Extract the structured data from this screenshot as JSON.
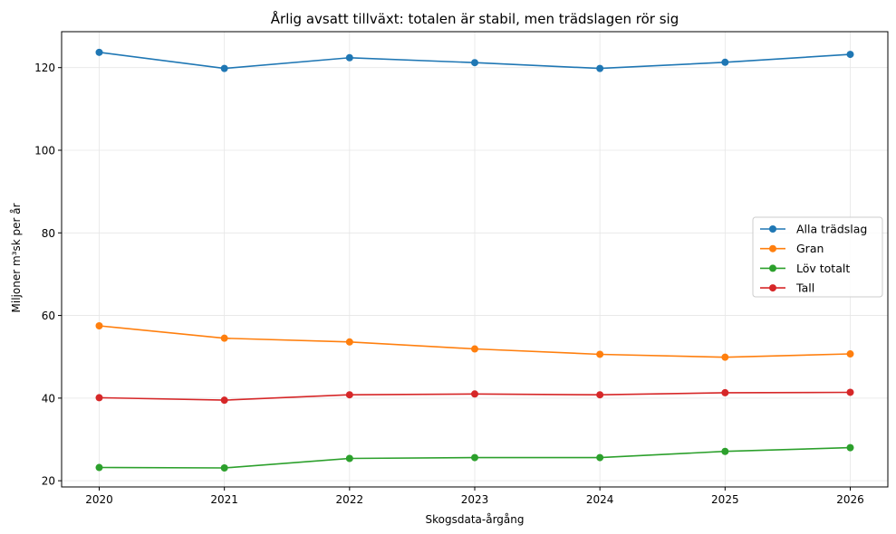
{
  "chart_data": {
    "type": "line",
    "title": "Årlig avsatt tillväxt: totalen är stabil, men trädslagen rör sig",
    "xlabel": "Skogsdata-årgång",
    "ylabel": "Miljoner m³sk per år",
    "x": [
      "2020",
      "2021",
      "2022",
      "2023",
      "2024",
      "2025",
      "2026"
    ],
    "y_ticks": [
      "20",
      "40",
      "60",
      "80",
      "100",
      "120"
    ],
    "ylim": [
      18.5,
      128.7
    ],
    "grid": true,
    "legend_position": "center-right",
    "series": [
      {
        "name": "Alla trädslag",
        "color": "#1f77b4",
        "values": [
          123.7,
          119.8,
          122.4,
          121.2,
          119.8,
          121.3,
          123.2
        ]
      },
      {
        "name": "Gran",
        "color": "#ff7f0e",
        "values": [
          57.5,
          54.5,
          53.6,
          51.9,
          50.6,
          49.9,
          50.7
        ]
      },
      {
        "name": "Löv totalt",
        "color": "#2ca02c",
        "values": [
          23.2,
          23.1,
          25.4,
          25.6,
          25.6,
          27.1,
          28.0
        ]
      },
      {
        "name": "Tall",
        "color": "#d62728",
        "values": [
          40.1,
          39.5,
          40.8,
          41.0,
          40.8,
          41.3,
          41.4
        ]
      }
    ]
  }
}
